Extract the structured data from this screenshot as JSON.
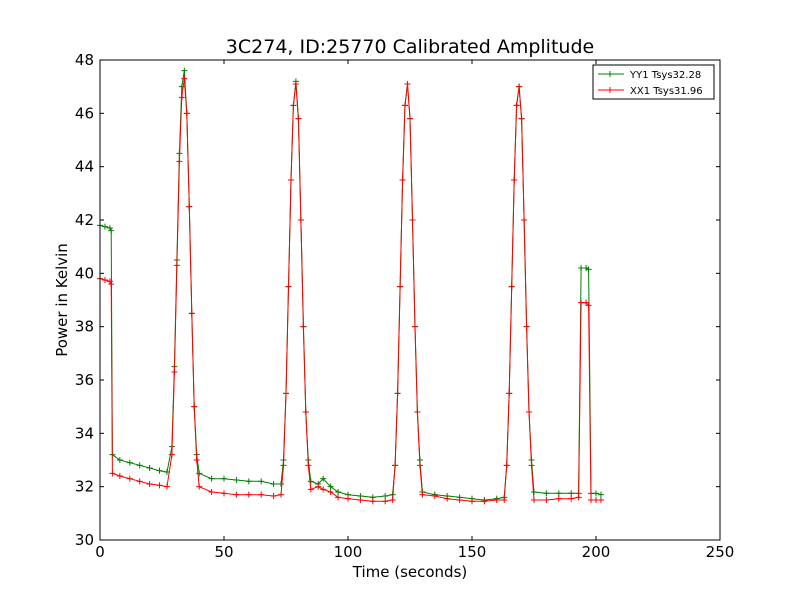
{
  "chart_data": {
    "type": "line",
    "title": "3C274, ID:25770 Calibrated Amplitude",
    "xlabel": "Time (seconds)",
    "ylabel": "Power in Kelvin",
    "xlim": [
      0,
      250
    ],
    "ylim": [
      30,
      48
    ],
    "xticks": [
      "0",
      "50",
      "100",
      "150",
      "200",
      "250"
    ],
    "yticks": [
      "30",
      "32",
      "34",
      "36",
      "38",
      "40",
      "42",
      "44",
      "46",
      "48"
    ],
    "grid": false,
    "legend_position": "top-right",
    "series": [
      {
        "name": "YY1 Tsys32.28",
        "color": "#008000",
        "marker": "plus",
        "points": [
          [
            0,
            41.8
          ],
          [
            2,
            41.75
          ],
          [
            4,
            41.7
          ],
          [
            4.5,
            41.6
          ],
          [
            5,
            33.2
          ],
          [
            8,
            33.0
          ],
          [
            12,
            32.9
          ],
          [
            16,
            32.8
          ],
          [
            20,
            32.7
          ],
          [
            24,
            32.6
          ],
          [
            27,
            32.55
          ],
          [
            29,
            33.5
          ],
          [
            30,
            36.5
          ],
          [
            31,
            40.5
          ],
          [
            32,
            44.5
          ],
          [
            33,
            47.0
          ],
          [
            34,
            47.6
          ],
          [
            35,
            46.0
          ],
          [
            36,
            42.5
          ],
          [
            37,
            38.5
          ],
          [
            38,
            35.0
          ],
          [
            39,
            33.2
          ],
          [
            40,
            32.5
          ],
          [
            45,
            32.3
          ],
          [
            50,
            32.3
          ],
          [
            55,
            32.25
          ],
          [
            60,
            32.2
          ],
          [
            65,
            32.2
          ],
          [
            70,
            32.1
          ],
          [
            73,
            32.1
          ],
          [
            74,
            33.0
          ],
          [
            75,
            35.5
          ],
          [
            76,
            39.5
          ],
          [
            77,
            43.5
          ],
          [
            78,
            46.3
          ],
          [
            79,
            47.2
          ],
          [
            80,
            45.8
          ],
          [
            81,
            42.0
          ],
          [
            82,
            38.0
          ],
          [
            83,
            34.8
          ],
          [
            84,
            33.0
          ],
          [
            85,
            32.2
          ],
          [
            88,
            32.1
          ],
          [
            90,
            32.3
          ],
          [
            93,
            32.0
          ],
          [
            96,
            31.8
          ],
          [
            100,
            31.7
          ],
          [
            105,
            31.65
          ],
          [
            110,
            31.6
          ],
          [
            115,
            31.65
          ],
          [
            118,
            31.7
          ],
          [
            119,
            32.8
          ],
          [
            120,
            35.5
          ],
          [
            121,
            39.5
          ],
          [
            122,
            43.5
          ],
          [
            123,
            46.3
          ],
          [
            124,
            47.1
          ],
          [
            125,
            45.8
          ],
          [
            126,
            42.0
          ],
          [
            127,
            38.0
          ],
          [
            128,
            34.8
          ],
          [
            129,
            33.0
          ],
          [
            130,
            31.8
          ],
          [
            135,
            31.7
          ],
          [
            140,
            31.65
          ],
          [
            145,
            31.6
          ],
          [
            150,
            31.55
          ],
          [
            155,
            31.5
          ],
          [
            160,
            31.55
          ],
          [
            163,
            31.6
          ],
          [
            164,
            32.8
          ],
          [
            165,
            35.5
          ],
          [
            166,
            39.5
          ],
          [
            167,
            43.5
          ],
          [
            168,
            46.3
          ],
          [
            169,
            47.0
          ],
          [
            170,
            45.8
          ],
          [
            171,
            42.0
          ],
          [
            172,
            38.0
          ],
          [
            173,
            34.8
          ],
          [
            174,
            33.0
          ],
          [
            175,
            31.8
          ],
          [
            180,
            31.75
          ],
          [
            185,
            31.75
          ],
          [
            190,
            31.75
          ],
          [
            193,
            31.75
          ],
          [
            194,
            40.2
          ],
          [
            196,
            40.2
          ],
          [
            197,
            40.15
          ],
          [
            198,
            31.75
          ],
          [
            200,
            31.75
          ],
          [
            202,
            31.7
          ]
        ]
      },
      {
        "name": "XX1 Tsys31.96",
        "color": "#ff0000",
        "marker": "plus",
        "points": [
          [
            0,
            39.8
          ],
          [
            2,
            39.75
          ],
          [
            4,
            39.7
          ],
          [
            4.5,
            39.6
          ],
          [
            5,
            32.5
          ],
          [
            8,
            32.4
          ],
          [
            12,
            32.3
          ],
          [
            16,
            32.2
          ],
          [
            20,
            32.1
          ],
          [
            24,
            32.05
          ],
          [
            27,
            32.0
          ],
          [
            29,
            33.2
          ],
          [
            30,
            36.3
          ],
          [
            31,
            40.3
          ],
          [
            32,
            44.2
          ],
          [
            33,
            46.6
          ],
          [
            34,
            47.3
          ],
          [
            35,
            46.0
          ],
          [
            36,
            42.5
          ],
          [
            37,
            38.5
          ],
          [
            38,
            35.0
          ],
          [
            39,
            33.0
          ],
          [
            40,
            32.0
          ],
          [
            45,
            31.8
          ],
          [
            50,
            31.75
          ],
          [
            55,
            31.7
          ],
          [
            60,
            31.7
          ],
          [
            65,
            31.7
          ],
          [
            70,
            31.65
          ],
          [
            73,
            31.7
          ],
          [
            74,
            32.8
          ],
          [
            75,
            35.5
          ],
          [
            76,
            39.5
          ],
          [
            77,
            43.5
          ],
          [
            78,
            46.3
          ],
          [
            79,
            47.1
          ],
          [
            80,
            45.8
          ],
          [
            81,
            42.0
          ],
          [
            82,
            38.0
          ],
          [
            83,
            34.8
          ],
          [
            84,
            32.8
          ],
          [
            85,
            31.9
          ],
          [
            88,
            32.0
          ],
          [
            90,
            31.9
          ],
          [
            93,
            31.8
          ],
          [
            96,
            31.6
          ],
          [
            100,
            31.55
          ],
          [
            105,
            31.5
          ],
          [
            110,
            31.45
          ],
          [
            115,
            31.45
          ],
          [
            118,
            31.5
          ],
          [
            119,
            32.8
          ],
          [
            120,
            35.5
          ],
          [
            121,
            39.5
          ],
          [
            122,
            43.5
          ],
          [
            123,
            46.3
          ],
          [
            124,
            47.1
          ],
          [
            125,
            45.8
          ],
          [
            126,
            42.0
          ],
          [
            127,
            38.0
          ],
          [
            128,
            34.8
          ],
          [
            129,
            32.8
          ],
          [
            130,
            31.7
          ],
          [
            135,
            31.65
          ],
          [
            140,
            31.55
          ],
          [
            145,
            31.5
          ],
          [
            150,
            31.45
          ],
          [
            155,
            31.45
          ],
          [
            160,
            31.5
          ],
          [
            163,
            31.5
          ],
          [
            164,
            32.8
          ],
          [
            165,
            35.5
          ],
          [
            166,
            39.5
          ],
          [
            167,
            43.5
          ],
          [
            168,
            46.3
          ],
          [
            169,
            47.0
          ],
          [
            170,
            45.8
          ],
          [
            171,
            42.0
          ],
          [
            172,
            38.0
          ],
          [
            173,
            34.8
          ],
          [
            174,
            32.8
          ],
          [
            175,
            31.5
          ],
          [
            180,
            31.5
          ],
          [
            185,
            31.55
          ],
          [
            190,
            31.55
          ],
          [
            193,
            31.6
          ],
          [
            194,
            38.9
          ],
          [
            196,
            38.9
          ],
          [
            197,
            38.8
          ],
          [
            198,
            31.5
          ],
          [
            200,
            31.5
          ],
          [
            202,
            31.5
          ]
        ]
      }
    ]
  }
}
